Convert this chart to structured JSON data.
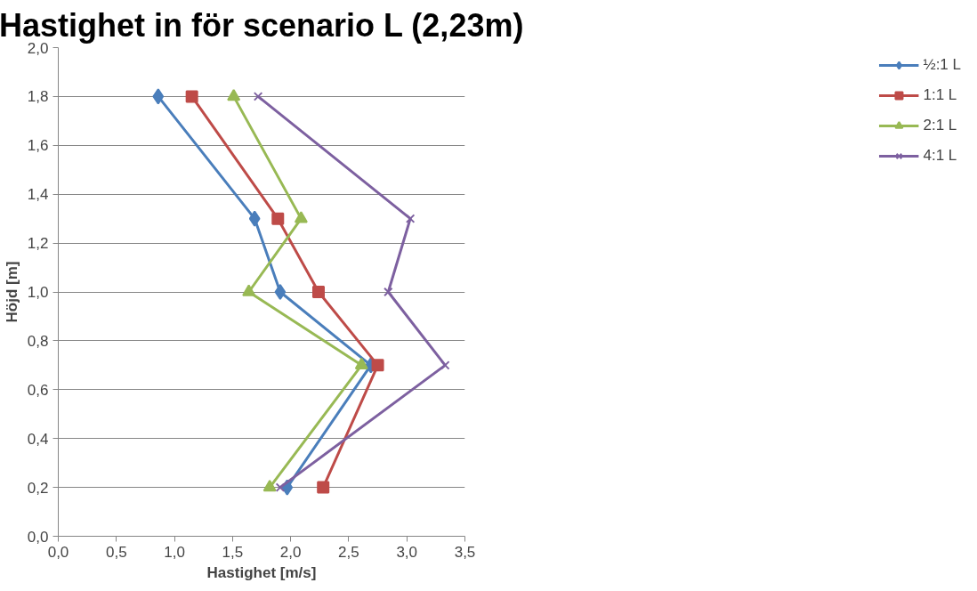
{
  "chart_data": {
    "type": "line",
    "title": "Hastighet in för scenario L (2,23m)",
    "xlabel": "Hastighet [m/s]",
    "ylabel": "Höjd [m]",
    "xlim": [
      0,
      3.5
    ],
    "xticks": [
      {
        "value": 0,
        "label": "0,0"
      },
      {
        "value": 0.5,
        "label": "0,5"
      },
      {
        "value": 1,
        "label": "1,0"
      },
      {
        "value": 1.5,
        "label": "1,5"
      },
      {
        "value": 2,
        "label": "2,0"
      },
      {
        "value": 2.5,
        "label": "2,5"
      },
      {
        "value": 3,
        "label": "3,0"
      },
      {
        "value": 3.5,
        "label": "3,5"
      }
    ],
    "ylim": [
      0,
      2
    ],
    "yticks": [
      {
        "value": 0,
        "label": "0,0"
      },
      {
        "value": 0.2,
        "label": "0,2"
      },
      {
        "value": 0.4,
        "label": "0,4"
      },
      {
        "value": 0.6,
        "label": "0,6"
      },
      {
        "value": 0.8,
        "label": "0,8"
      },
      {
        "value": 1,
        "label": "1,0"
      },
      {
        "value": 1.2,
        "label": "1,2"
      },
      {
        "value": 1.4,
        "label": "1,4"
      },
      {
        "value": 1.6,
        "label": "1,6"
      },
      {
        "value": 1.8,
        "label": "1,8"
      },
      {
        "value": 2,
        "label": "2,0"
      }
    ],
    "grid": "y",
    "legend": "right",
    "line_style": "solid",
    "series": [
      {
        "name": "½:1 L",
        "color": "#4a7ebb",
        "marker": "diamond",
        "x": [
          0.86,
          1.69,
          1.91,
          2.69,
          1.97
        ],
        "values": [
          1.8,
          1.3,
          1.0,
          0.7,
          0.2
        ]
      },
      {
        "name": "1:1 L",
        "color": "#be4b48",
        "marker": "square",
        "x": [
          1.15,
          1.89,
          2.24,
          2.75,
          2.28
        ],
        "values": [
          1.8,
          1.3,
          1.0,
          0.7,
          0.2
        ]
      },
      {
        "name": "2:1 L",
        "color": "#98b954",
        "marker": "triangle",
        "x": [
          1.51,
          2.09,
          1.64,
          2.61,
          1.82
        ],
        "values": [
          1.8,
          1.3,
          1.0,
          0.7,
          0.2
        ]
      },
      {
        "name": "4:1 L",
        "color": "#7d60a0",
        "marker": "cross",
        "x": [
          1.72,
          3.03,
          2.84,
          3.33,
          1.91
        ],
        "values": [
          1.8,
          1.3,
          1.0,
          0.7,
          0.2
        ]
      }
    ]
  }
}
